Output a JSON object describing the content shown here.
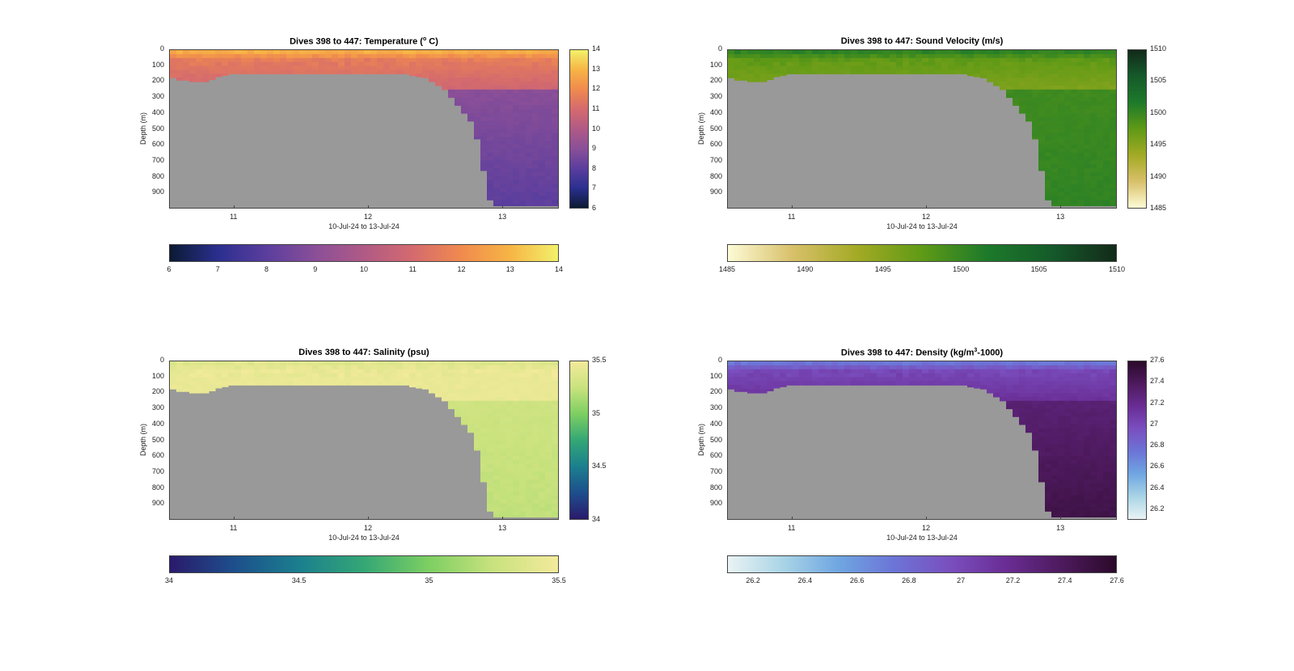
{
  "chart_data": [
    {
      "type": "heatmap",
      "title_main": "Dives 398 to 447: Temperature (",
      "title_sup": "o",
      "title_end": " C)",
      "ylabel": "Depth (m)",
      "xlabel": "10-Jul-24 to 13-Jul-24",
      "x_ticks": [
        "11",
        "12",
        "13"
      ],
      "x_tick_values": [
        11,
        12,
        13
      ],
      "xlim": [
        10.52,
        13.42
      ],
      "y_ticks": [
        "0",
        "100",
        "200",
        "300",
        "400",
        "500",
        "600",
        "700",
        "800",
        "900"
      ],
      "ylim": [
        0,
        1000
      ],
      "y_reversed": true,
      "colorbar_ticks": [
        "6",
        "7",
        "8",
        "9",
        "10",
        "11",
        "12",
        "13",
        "14"
      ],
      "clim": [
        6,
        14
      ],
      "colormap": [
        "#0b1a33",
        "#2b2f8f",
        "#5b3e9e",
        "#8a4f98",
        "#b05a86",
        "#d46a6e",
        "#f08a4e",
        "#f7b445",
        "#f2f16a"
      ],
      "background_color": "#999999",
      "profile": {
        "surface": 12.8,
        "near_surface": 11.6,
        "mixed": 10.8,
        "deep": 9.0,
        "bottom": 8.0
      }
    },
    {
      "type": "heatmap",
      "title_main": "Dives 398 to 447: Sound Velocity (m/s)",
      "title_sup": "",
      "title_end": "",
      "ylabel": "Depth (m)",
      "xlabel": "10-Jul-24 to 13-Jul-24",
      "x_ticks": [
        "11",
        "12",
        "13"
      ],
      "x_tick_values": [
        11,
        12,
        13
      ],
      "xlim": [
        10.52,
        13.42
      ],
      "y_ticks": [
        "0",
        "100",
        "200",
        "300",
        "400",
        "500",
        "600",
        "700",
        "800",
        "900"
      ],
      "ylim": [
        0,
        1000
      ],
      "y_reversed": true,
      "colorbar_ticks": [
        "1485",
        "1490",
        "1495",
        "1500",
        "1505",
        "1510"
      ],
      "clim": [
        1485,
        1510
      ],
      "colormap": [
        "#fdfbd6",
        "#d8c06a",
        "#a3aa24",
        "#5f9a16",
        "#1d7a2a",
        "#155a2a",
        "#132a1a"
      ],
      "background_color": "#999999",
      "profile": {
        "surface": 1500.5,
        "near_surface": 1497.5,
        "mixed": 1495.5,
        "deep": 1499.5,
        "bottom": 1500.5
      }
    },
    {
      "type": "heatmap",
      "title_main": "Dives 398 to 447: Salinity (psu)",
      "title_sup": "",
      "title_end": "",
      "ylabel": "Depth (m)",
      "xlabel": "10-Jul-24 to 13-Jul-24",
      "x_ticks": [
        "11",
        "12",
        "13"
      ],
      "x_tick_values": [
        11,
        12,
        13
      ],
      "xlim": [
        10.52,
        13.42
      ],
      "y_ticks": [
        "0",
        "100",
        "200",
        "300",
        "400",
        "500",
        "600",
        "700",
        "800",
        "900"
      ],
      "ylim": [
        0,
        1000
      ],
      "y_reversed": true,
      "colorbar_ticks": [
        "34",
        "34.5",
        "35",
        "35.5"
      ],
      "colorbar_tick_values": [
        34,
        34.5,
        35,
        35.5
      ],
      "clim": [
        34,
        35.5
      ],
      "colormap": [
        "#2a1a6b",
        "#1d4f8c",
        "#1b7f8e",
        "#34a775",
        "#7dcf62",
        "#c9e27e",
        "#f3ea9b"
      ],
      "background_color": "#999999",
      "profile": {
        "surface": 35.38,
        "near_surface": 35.45,
        "mixed": 35.44,
        "deep": 35.28,
        "bottom": 35.22
      }
    },
    {
      "type": "heatmap",
      "title_main": "Dives 398 to 447: Density (kg/m",
      "title_sup": "3",
      "title_end": "-1000)",
      "ylabel": "Depth (m)",
      "xlabel": "10-Jul-24 to 13-Jul-24",
      "x_ticks": [
        "11",
        "12",
        "13"
      ],
      "x_tick_values": [
        11,
        12,
        13
      ],
      "xlim": [
        10.52,
        13.42
      ],
      "y_ticks": [
        "0",
        "100",
        "200",
        "300",
        "400",
        "500",
        "600",
        "700",
        "800",
        "900"
      ],
      "ylim": [
        0,
        1000
      ],
      "y_reversed": true,
      "colorbar_ticks": [
        "26.2",
        "26.4",
        "26.6",
        "26.8",
        "27",
        "27.2",
        "27.4",
        "27.6"
      ],
      "colorbar_tick_values": [
        26.2,
        26.4,
        26.6,
        26.8,
        27.0,
        27.2,
        27.4,
        27.6
      ],
      "clim": [
        26.1,
        27.6
      ],
      "colormap": [
        "#e9f3f4",
        "#a9d4e6",
        "#6fa6e2",
        "#6c74d6",
        "#7a4fbf",
        "#6a2d95",
        "#4e1a5e",
        "#2b0a2a"
      ],
      "background_color": "#999999",
      "profile": {
        "surface": 26.75,
        "near_surface": 27.0,
        "mixed": 27.15,
        "deep": 27.3,
        "bottom": 27.48
      }
    }
  ],
  "bathymetry": {
    "note_values_are_depth_m_vs_day": true,
    "days": [
      10.52,
      10.6,
      10.62,
      10.68,
      10.72,
      10.82,
      10.9,
      11.0,
      11.2,
      11.4,
      11.6,
      11.8,
      12.0,
      12.2,
      12.3,
      12.4,
      12.45,
      12.5,
      12.55,
      12.6,
      12.65,
      12.7,
      12.75,
      12.8,
      12.86,
      12.92,
      12.98,
      13.42
    ],
    "depths": [
      180,
      195,
      190,
      200,
      210,
      195,
      165,
      160,
      158,
      158,
      160,
      158,
      150,
      152,
      160,
      175,
      190,
      210,
      240,
      280,
      330,
      380,
      440,
      500,
      750,
      990,
      990,
      990
    ]
  }
}
